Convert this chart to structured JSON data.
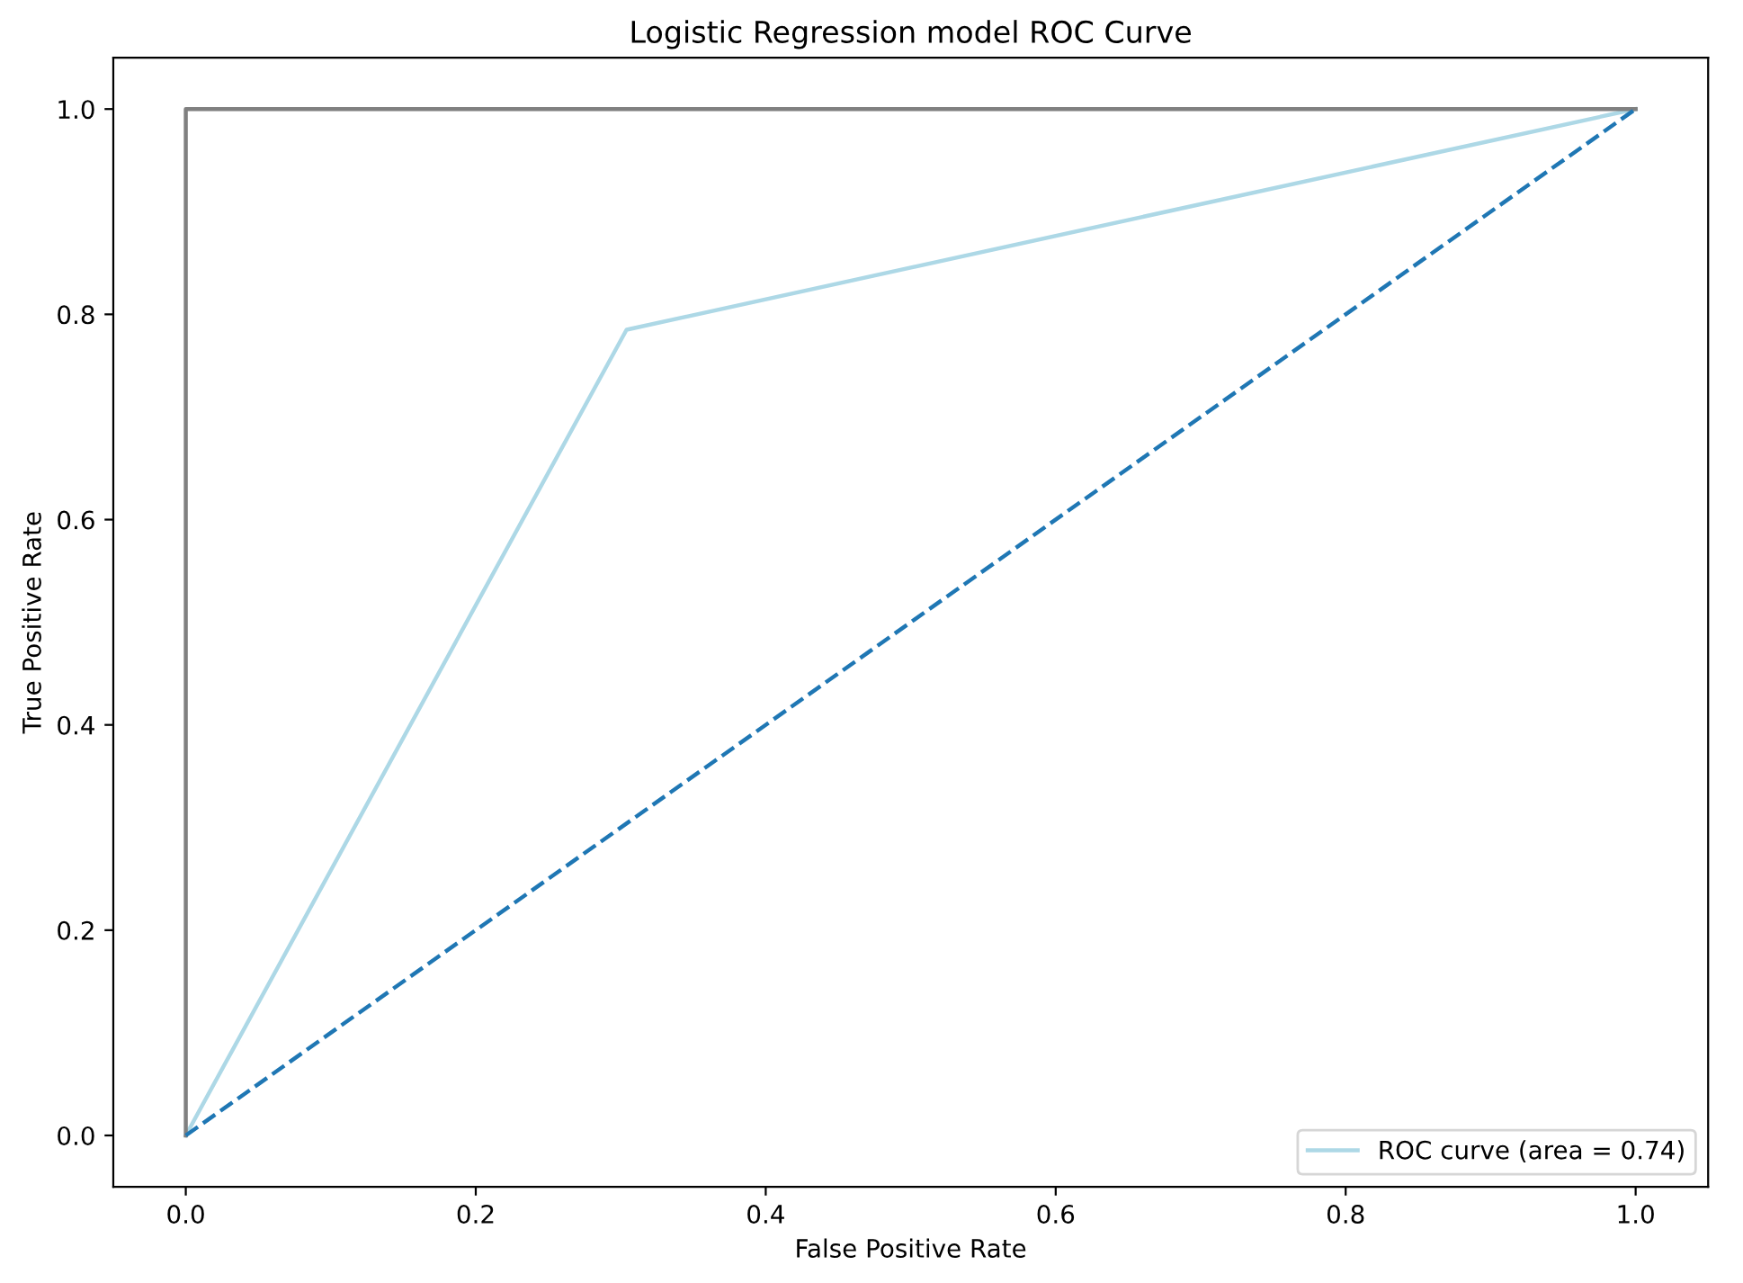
{
  "chart_data": {
    "type": "line",
    "title": "Logistic Regression model ROC Curve",
    "xlabel": "False Positive Rate",
    "ylabel": "True Positive Rate",
    "series": [
      {
        "name": "ROC curve (area = 0.74)",
        "color": "#add8e6",
        "x": [
          0,
          0.304,
          1
        ],
        "values": [
          0,
          0.785,
          1
        ]
      },
      {
        "color": "#808080",
        "x": [
          0,
          0,
          1
        ],
        "values": [
          0,
          1,
          1
        ]
      },
      {
        "color": "#1f77b4",
        "x": [
          0,
          1
        ],
        "values": [
          0,
          1
        ],
        "line_style": "dashed"
      }
    ],
    "xlim": [
      -0.05,
      1.05
    ],
    "ylim": [
      -0.05,
      1.05
    ],
    "xticks": [
      {
        "value": 0,
        "label": "0.0"
      },
      0.2,
      0.4,
      0.6,
      0.8,
      {
        "value": 1,
        "label": "1.0"
      }
    ],
    "yticks": [
      {
        "value": 0,
        "label": "0.0"
      },
      0.2,
      0.4,
      0.6,
      0.8,
      {
        "value": 1,
        "label": "1.0"
      }
    ],
    "legend": "bottom right",
    "grid": false,
    "marker": "none"
  }
}
